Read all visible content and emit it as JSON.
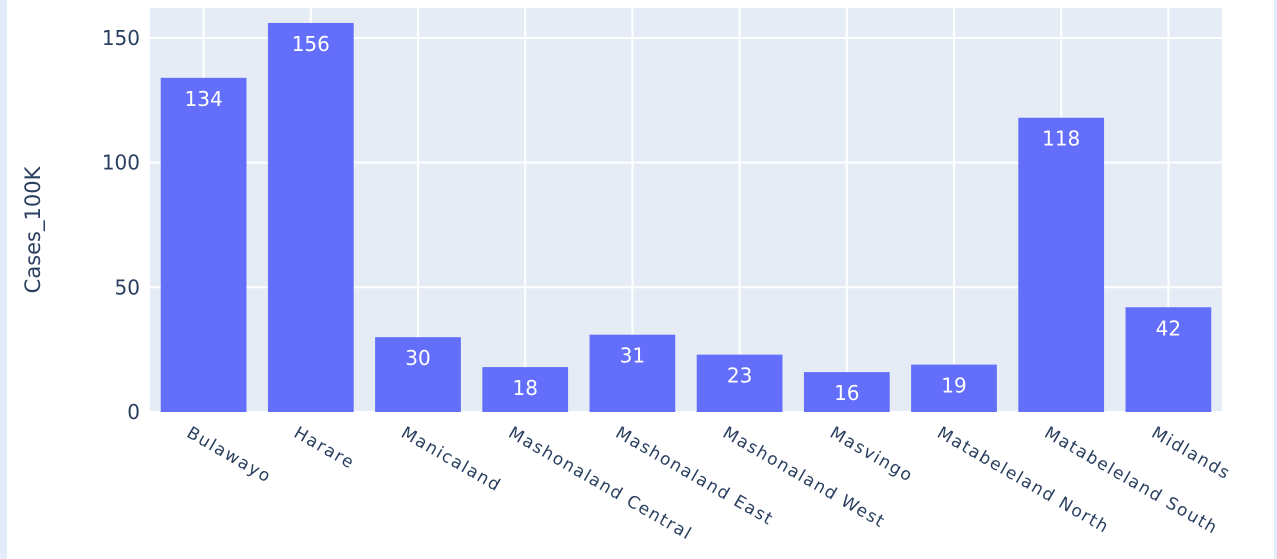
{
  "chart_data": {
    "type": "bar",
    "categories": [
      "Bulawayo",
      "Harare",
      "Manicaland",
      "Mashonaland Central",
      "Mashonaland East",
      "Mashonaland West",
      "Masvingo",
      "Matabeleland North",
      "Matabeleland South",
      "Midlands"
    ],
    "values": [
      134,
      156,
      30,
      18,
      31,
      23,
      16,
      19,
      118,
      42
    ],
    "value_labels": [
      "134",
      "156",
      "30",
      "18",
      "31",
      "23",
      "16",
      "19",
      "118",
      "42"
    ],
    "title": "",
    "xlabel": "",
    "ylabel": "Cases_100K",
    "ylim": [
      0,
      162
    ],
    "yticks": [
      0,
      50,
      100,
      150
    ],
    "ytick_labels": [
      "0",
      "50",
      "100",
      "150"
    ],
    "grid": true,
    "bar_color": "#636efa",
    "plot_bg": "#e5ecf6",
    "gridline_color": "#ffffff",
    "label_inside_color": "#ffffff",
    "label_outside_color": "#2a3f5f",
    "text_color": "#2a3f5f"
  }
}
